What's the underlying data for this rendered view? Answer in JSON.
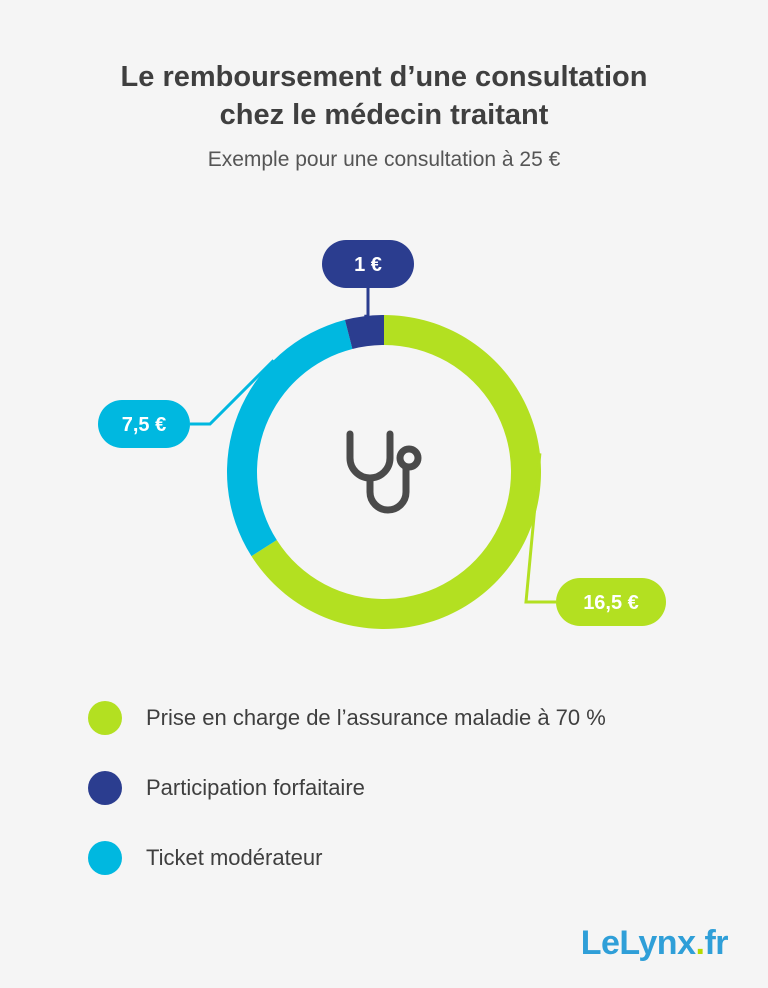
{
  "header": {
    "title_line1": "Le remboursement d’une consultation",
    "title_line2": "chez le médecin traitant",
    "subtitle": "Exemple pour une consultation à 25 €"
  },
  "chart_data": {
    "type": "pie",
    "variant": "donut",
    "total": 25,
    "slices": [
      {
        "name": "Prise en charge de l’assurance maladie à 70 %",
        "value": 16.5,
        "label": "16,5 €",
        "color": "#b3e021"
      },
      {
        "name": "Ticket modérateur",
        "value": 7.5,
        "label": "7,5 €",
        "color": "#00b8e0"
      },
      {
        "name": "Participation forfaitaire",
        "value": 1,
        "label": "1 €",
        "color": "#2b3d8f"
      }
    ],
    "center_icon": "stethoscope-icon",
    "legend_position": "bottom-left"
  },
  "legend": [
    {
      "label": "Prise en charge de l’assurance maladie à 70 %",
      "color": "#b3e021"
    },
    {
      "label": "Participation forfaitaire",
      "color": "#2b3d8f"
    },
    {
      "label": "Ticket modérateur",
      "color": "#00b8e0"
    }
  ],
  "brand": {
    "name": "LeLynx",
    "dot": ".",
    "tld": "fr",
    "colors": {
      "main": "#2f9fd8",
      "dot": "#b5d900"
    }
  },
  "icons": {
    "center": "stethoscope-icon"
  }
}
